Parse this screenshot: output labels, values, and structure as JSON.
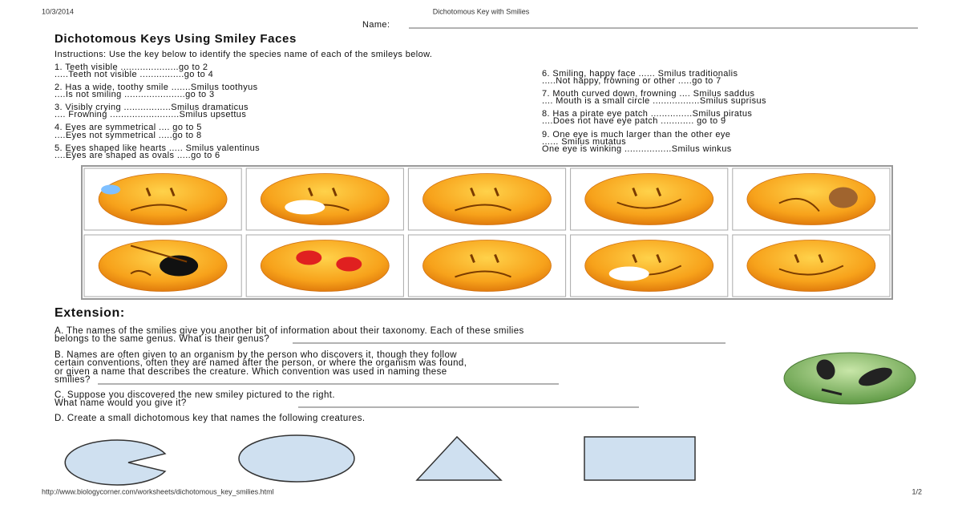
{
  "header": {
    "date": "10/3/2014",
    "doc_title": "Dichotomous Key with Smilies",
    "name_label": "Name:"
  },
  "title": "Dichotomous Keys Using Smiley Faces",
  "instructions": "Instructions: Use the key below to identify the species name of each of the smileys below.",
  "key_left": [
    "1. Teeth visible .....................go to 2",
    ".....Teeth not visible ................go to 4",
    "2. Has a wide, toothy smile .......Smilus toothyus",
    "....Is not smiling ......................go to 3",
    "3. Visibly crying .................Smilus dramaticus",
    ".... Frowning .........................Smilus upsettus",
    "4. Eyes are symmetrical .... go to 5",
    "....Eyes not symmetrical .....go to 8",
    "5. Eyes shaped like hearts ..... Smilus valentinus",
    "....Eyes are shaped as ovals .....go to 6"
  ],
  "key_right": [
    "6. Smiling, happy face ...... Smilus traditionalis",
    ".....Not happy, frowning or other .....go to 7",
    "7. Mouth curved down, frowning .... Smilus saddus",
    ".... Mouth is a small circle .................Smilus suprisus",
    "8. Has a pirate eye patch ...............Smilus piratus",
    "....Does not have eye patch ............ go to 9",
    "9. One eye is much larger than the other eye",
    "...... Smilus mutatus",
    "One eye is winking .................Smilus winkus"
  ],
  "extension": {
    "heading": "Extension:",
    "a": [
      "A. The names of the smilies give you another bit of information about their taxonomy. Each of these smilies",
      "belongs to the same genus. What is their genus?"
    ],
    "b": [
      "B. Names are often given to an organism by the person who discovers it, though they follow",
      "certain conventions, often they are named after the person, or where the organism was found,",
      "or given a name that describes the creature. Which convention was used in naming these",
      "smilies?"
    ],
    "c": [
      "C. Suppose you discovered the new smiley pictured to the right.",
      "What name would you give it?"
    ],
    "d": [
      "D. Create a small dichotomous key that names the following creatures."
    ]
  },
  "footer": {
    "url": "http://www.biologycorner.com/worksheets/dichotomous_key_smilies.html",
    "page": "1/2"
  }
}
